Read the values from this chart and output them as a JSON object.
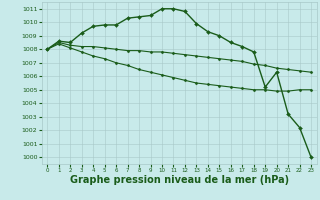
{
  "background_color": "#c8eaea",
  "grid_color": "#a8c8c8",
  "line_color": "#1a5c1a",
  "xlabel": "Graphe pression niveau de la mer (hPa)",
  "xlabel_fontsize": 7.0,
  "ylabel_ticks": [
    1000,
    1001,
    1002,
    1003,
    1004,
    1005,
    1006,
    1007,
    1008,
    1009,
    1010,
    1011
  ],
  "xlabel_ticks": [
    0,
    1,
    2,
    3,
    4,
    5,
    6,
    7,
    8,
    9,
    10,
    11,
    12,
    13,
    14,
    15,
    16,
    17,
    18,
    19,
    20,
    21,
    22,
    23
  ],
  "ylim": [
    999.5,
    1011.5
  ],
  "xlim": [
    -0.5,
    23.5
  ],
  "series": [
    {
      "x": [
        0,
        1,
        2,
        3,
        4,
        5,
        6,
        7,
        8,
        9,
        10,
        11,
        12,
        13,
        14,
        15,
        16,
        17,
        18,
        19,
        20,
        21,
        22,
        23
      ],
      "y": [
        1008.0,
        1008.6,
        1008.5,
        1009.2,
        1009.7,
        1009.8,
        1009.8,
        1010.3,
        1010.4,
        1010.5,
        1011.0,
        1011.0,
        1010.8,
        1009.9,
        1009.3,
        1009.0,
        1008.5,
        1008.2,
        1007.8,
        1005.2,
        1006.3,
        1003.2,
        1002.2,
        1000.0
      ],
      "has_markers": true,
      "linewidth": 1.0,
      "markersize": 2.0
    },
    {
      "x": [
        0,
        1,
        2,
        3,
        4,
        5,
        6,
        7,
        8,
        9,
        10,
        11,
        12,
        13,
        14,
        15,
        16,
        17,
        18,
        19,
        20,
        21,
        22,
        23
      ],
      "y": [
        1008.0,
        1008.5,
        1008.3,
        1008.2,
        1008.2,
        1008.1,
        1008.0,
        1007.9,
        1007.9,
        1007.8,
        1007.8,
        1007.7,
        1007.6,
        1007.5,
        1007.4,
        1007.3,
        1007.2,
        1007.1,
        1006.9,
        1006.8,
        1006.6,
        1006.5,
        1006.4,
        1006.3
      ],
      "has_markers": true,
      "linewidth": 0.8,
      "markersize": 1.5
    },
    {
      "x": [
        0,
        1,
        2,
        3,
        4,
        5,
        6,
        7,
        8,
        9,
        10,
        11,
        12,
        13,
        14,
        15,
        16,
        17,
        18,
        19,
        20,
        21,
        22,
        23
      ],
      "y": [
        1008.0,
        1008.4,
        1008.1,
        1007.8,
        1007.5,
        1007.3,
        1007.0,
        1006.8,
        1006.5,
        1006.3,
        1006.1,
        1005.9,
        1005.7,
        1005.5,
        1005.4,
        1005.3,
        1005.2,
        1005.1,
        1005.0,
        1005.0,
        1004.9,
        1004.9,
        1005.0,
        1005.0
      ],
      "has_markers": true,
      "linewidth": 0.8,
      "markersize": 1.5
    }
  ]
}
